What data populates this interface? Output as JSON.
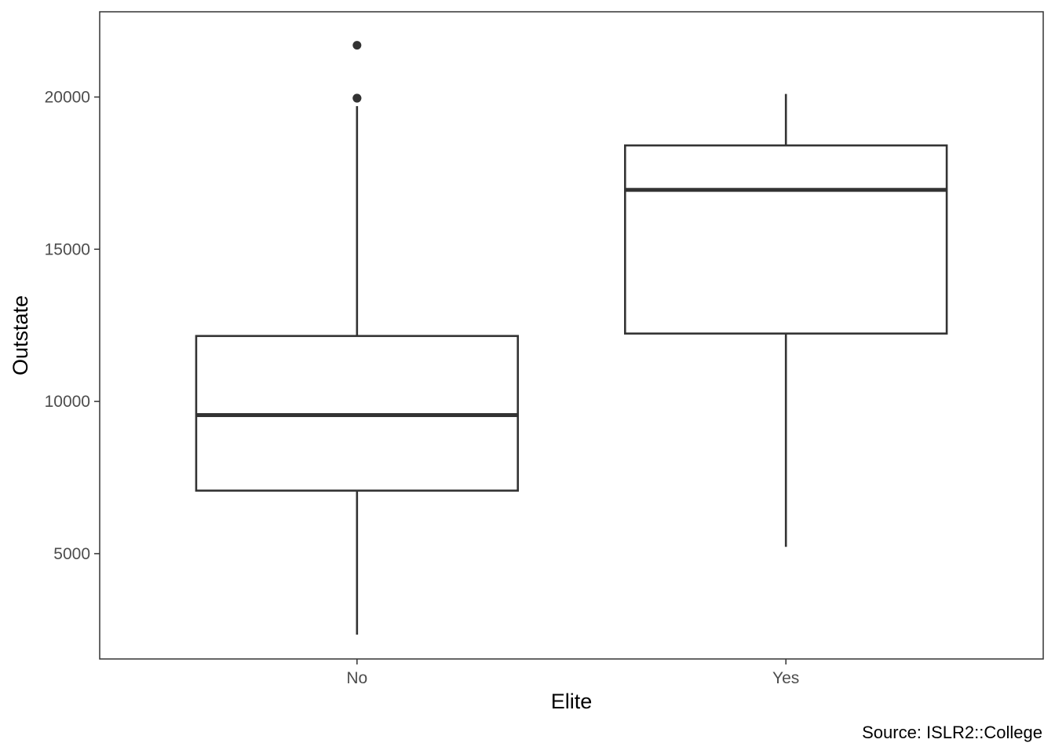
{
  "chart_data": {
    "type": "boxplot",
    "xlabel": "Elite",
    "ylabel": "Outstate",
    "caption": "Source: ISLR2::College",
    "categories": [
      "No",
      "Yes"
    ],
    "ylim": [
      1540,
      22800
    ],
    "yticks": [
      5000,
      10000,
      15000,
      20000
    ],
    "ytick_labels": [
      "5000",
      "10000",
      "15000",
      "20000"
    ],
    "grid": false,
    "legend": "none",
    "boxes": [
      {
        "category": "No",
        "whisker_low": 2340,
        "q1": 7070,
        "median": 9550,
        "q3": 12150,
        "whisker_high": 19700,
        "outliers": [
          19960,
          19964,
          21700
        ]
      },
      {
        "category": "Yes",
        "whisker_low": 5224,
        "q1": 12230,
        "median": 16950,
        "q3": 18410,
        "whisker_high": 20100,
        "outliers": []
      }
    ],
    "colors": {
      "box_stroke": "#333333",
      "box_fill": "#ffffff",
      "panel_border": "#333333",
      "tick_label": "#4d4d4d",
      "outlier": "#333333"
    }
  }
}
